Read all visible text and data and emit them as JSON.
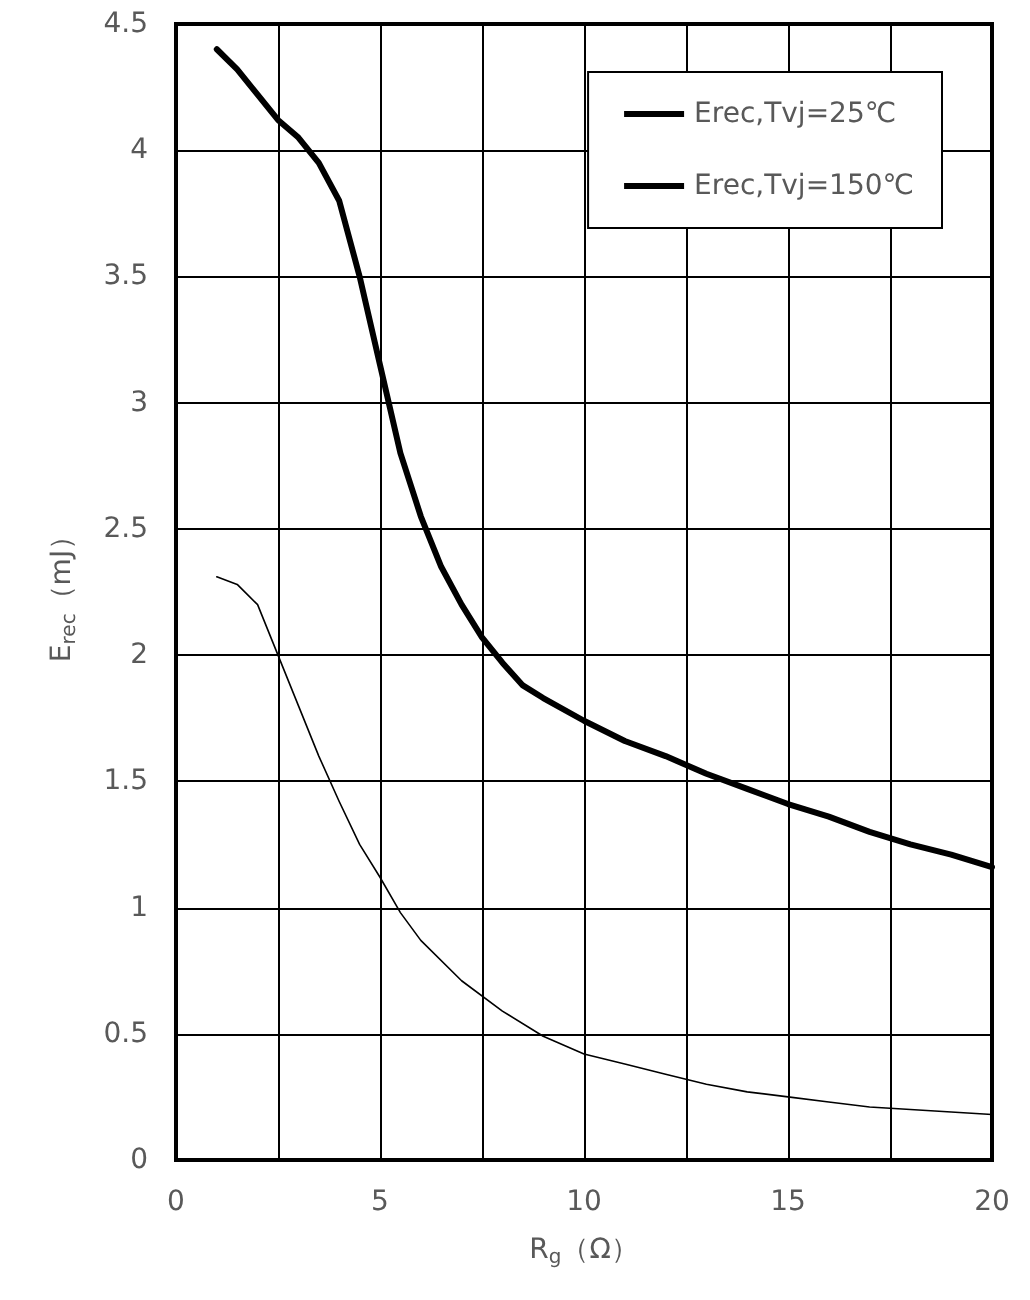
{
  "chart_data": {
    "type": "line",
    "xlabel": "R$_{g}$（Ω）",
    "ylabel": "E$_{rec}$（mJ）",
    "xlim": [
      0,
      20
    ],
    "xticks": [
      0,
      {
        "value": 2.5,
        "label": null
      },
      5,
      {
        "value": 7.5,
        "label": null
      },
      10,
      {
        "value": 12.5,
        "label": null
      },
      15,
      {
        "value": 17.5,
        "label": null
      },
      20
    ],
    "ylim": [
      0,
      4.5
    ],
    "yticks": [
      0,
      0.5,
      1,
      1.5,
      2,
      2.5,
      3,
      3.5,
      4,
      4.5
    ],
    "grid": true,
    "legend": "top right",
    "marker": "none",
    "line_style": "solid",
    "series": [
      {
        "name": "Erec,Tvj=25℃",
        "color": "#000000",
        "x": [
          1,
          1.5,
          2,
          2.5,
          3,
          3.5,
          4,
          4.5,
          5,
          5.5,
          6,
          7,
          8,
          9,
          10,
          11,
          12,
          13,
          14,
          15,
          16,
          17,
          18,
          19,
          20
        ],
        "values": [
          2.31,
          2.28,
          2.2,
          2.0,
          1.8,
          1.6,
          1.42,
          1.25,
          1.12,
          0.98,
          0.87,
          0.71,
          0.59,
          0.49,
          0.42,
          0.38,
          0.34,
          0.3,
          0.27,
          0.25,
          0.23,
          0.21,
          0.2,
          0.19,
          0.18
        ]
      },
      {
        "name": "Erec,Tvj=150℃",
        "color": "#000000",
        "x": [
          1,
          1.5,
          2,
          2.5,
          3,
          3.5,
          4,
          4.5,
          5,
          5.5,
          6,
          6.5,
          7,
          7.5,
          8,
          8.5,
          9,
          10,
          11,
          12,
          13,
          14,
          15,
          16,
          17,
          18,
          19,
          20
        ],
        "values": [
          4.4,
          4.32,
          4.22,
          4.12,
          4.05,
          3.95,
          3.8,
          3.5,
          3.15,
          2.8,
          2.55,
          2.35,
          2.2,
          2.07,
          1.97,
          1.88,
          1.83,
          1.74,
          1.66,
          1.6,
          1.53,
          1.47,
          1.41,
          1.36,
          1.3,
          1.25,
          1.21,
          1.16
        ]
      }
    ]
  }
}
